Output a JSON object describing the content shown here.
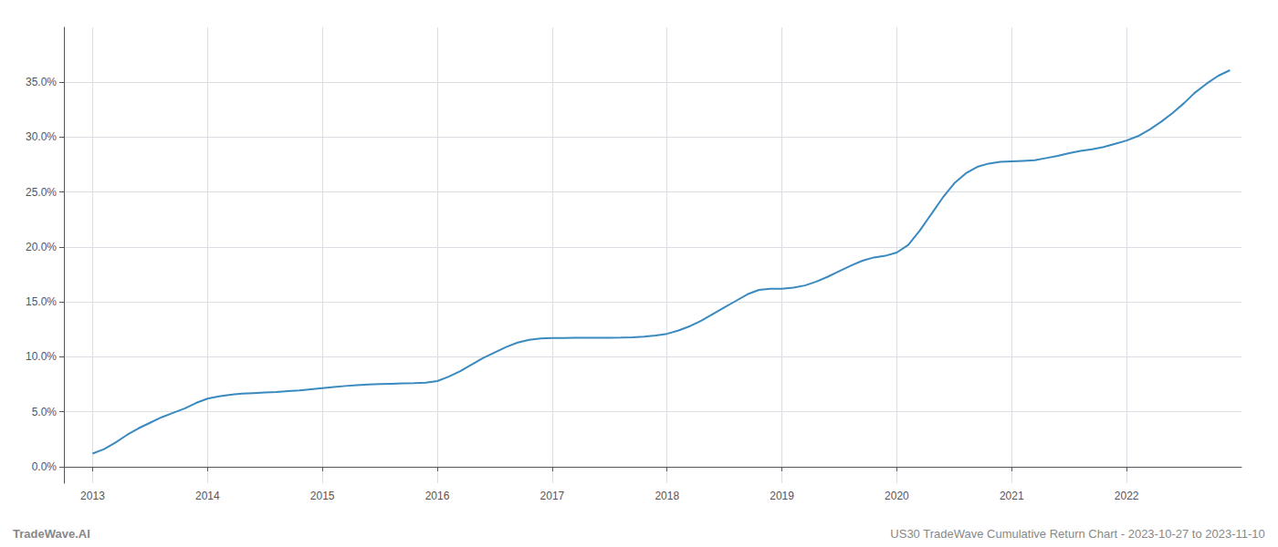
{
  "chart_data": {
    "type": "line",
    "annotations": [
      "TradeWave.AI",
      "US30 TradeWave Cumulative Return Chart - 2023-10-27 to 2023-11-10"
    ],
    "color": "#3a8abf",
    "grid": true,
    "x": [
      2013.0,
      2013.1,
      2013.2,
      2013.3,
      2013.4,
      2013.5,
      2013.6,
      2013.7,
      2013.8,
      2013.9,
      2014.0,
      2014.1,
      2014.2,
      2014.3,
      2014.4,
      2014.5,
      2014.6,
      2014.7,
      2014.8,
      2014.9,
      2015.0,
      2015.1,
      2015.2,
      2015.3,
      2015.4,
      2015.5,
      2015.6,
      2015.7,
      2015.8,
      2015.9,
      2016.0,
      2016.1,
      2016.2,
      2016.3,
      2016.4,
      2016.5,
      2016.6,
      2016.7,
      2016.8,
      2016.9,
      2017.0,
      2017.1,
      2017.2,
      2017.3,
      2017.4,
      2017.5,
      2017.6,
      2017.7,
      2017.8,
      2017.9,
      2018.0,
      2018.1,
      2018.2,
      2018.3,
      2018.4,
      2018.5,
      2018.6,
      2018.7,
      2018.8,
      2018.9,
      2019.0,
      2019.1,
      2019.2,
      2019.3,
      2019.4,
      2019.5,
      2019.6,
      2019.7,
      2019.8,
      2019.9,
      2020.0,
      2020.1,
      2020.2,
      2020.3,
      2020.4,
      2020.5,
      2020.6,
      2020.7,
      2020.8,
      2020.9,
      2021.0,
      2021.1,
      2021.2,
      2021.3,
      2021.4,
      2021.5,
      2021.6,
      2021.7,
      2021.8,
      2021.9,
      2022.0,
      2022.1,
      2022.2,
      2022.3,
      2022.4,
      2022.5,
      2022.6,
      2022.7,
      2022.8,
      2022.9
    ],
    "values": [
      1.2,
      1.6,
      2.2,
      2.9,
      3.5,
      4.0,
      4.5,
      4.9,
      5.3,
      5.8,
      6.2,
      6.4,
      6.55,
      6.65,
      6.7,
      6.75,
      6.8,
      6.88,
      6.95,
      7.05,
      7.15,
      7.25,
      7.35,
      7.42,
      7.48,
      7.52,
      7.55,
      7.58,
      7.6,
      7.65,
      7.8,
      8.2,
      8.7,
      9.3,
      9.9,
      10.4,
      10.9,
      11.3,
      11.55,
      11.68,
      11.72,
      11.72,
      11.73,
      11.73,
      11.74,
      11.74,
      11.75,
      11.78,
      11.85,
      11.95,
      12.1,
      12.4,
      12.8,
      13.3,
      13.9,
      14.5,
      15.1,
      15.7,
      16.1,
      16.2,
      16.2,
      16.3,
      16.5,
      16.85,
      17.3,
      17.8,
      18.3,
      18.75,
      19.05,
      19.2,
      19.5,
      20.2,
      21.5,
      23.0,
      24.5,
      25.8,
      26.7,
      27.3,
      27.6,
      27.75,
      27.8,
      27.85,
      27.9,
      28.1,
      28.3,
      28.55,
      28.75,
      28.9,
      29.1,
      29.4,
      29.7,
      30.1,
      30.7,
      31.4,
      32.2,
      33.1,
      34.1,
      34.9,
      35.6,
      36.1
    ],
    "xlim": [
      2012.75,
      2023.0
    ],
    "xticks": [
      2013,
      2014,
      2015,
      2016,
      2017,
      2018,
      2019,
      2020,
      2021,
      2022
    ],
    "ylim": [
      -1.5,
      40
    ],
    "yticks": [
      {
        "value": 0.0,
        "label": "0.0%"
      },
      {
        "value": 5.0,
        "label": "5.0%"
      },
      {
        "value": 10.0,
        "label": "10.0%"
      },
      {
        "value": 15.0,
        "label": "15.0%"
      },
      {
        "value": 20.0,
        "label": "20.0%"
      },
      {
        "value": 25.0,
        "label": "25.0%"
      },
      {
        "value": 30.0,
        "label": "30.0%"
      },
      {
        "value": 35.0,
        "label": "35.0%"
      }
    ]
  }
}
